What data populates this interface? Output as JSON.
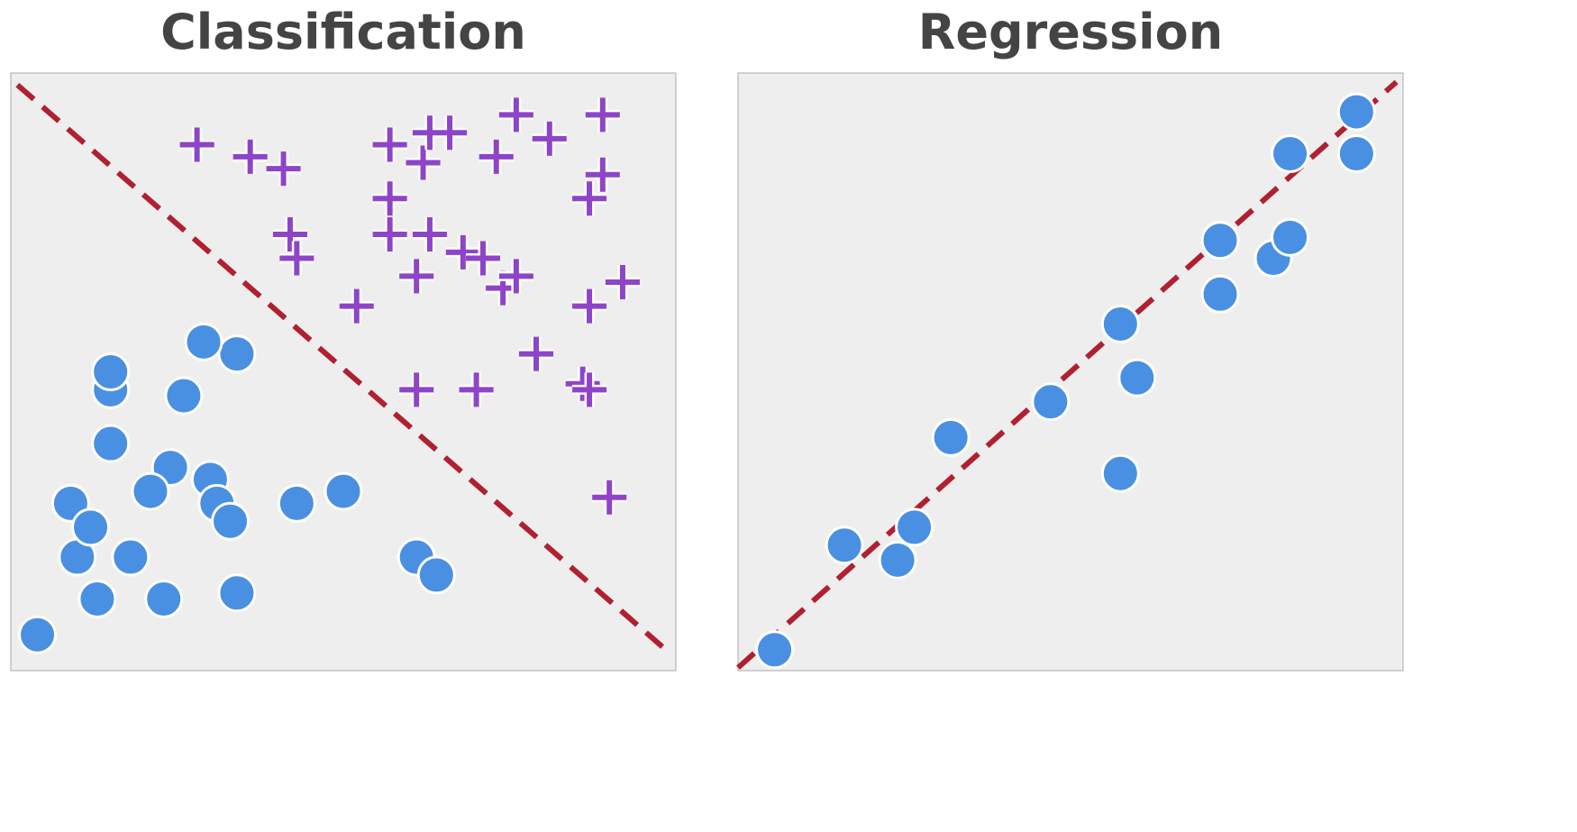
{
  "colors": {
    "circle": "#4a90e2",
    "plus": "#8e44c8",
    "line": "#b02030",
    "background": "#eeeeee",
    "frame": "#aaaaaa",
    "title": "#444444"
  },
  "chart_data": [
    {
      "type": "scatter",
      "title": "Classification",
      "xlim": [
        0,
        10
      ],
      "ylim": [
        0,
        10
      ],
      "grid": false,
      "boundary": {
        "style": "dashed",
        "x": [
          0.1,
          9.9
        ],
        "y": [
          9.8,
          0.3
        ]
      },
      "series": [
        {
          "marker": "circle",
          "x": [
            0.4,
            1.0,
            1.3,
            1.8,
            2.3,
            3.4,
            5.0,
            0.9,
            2.4,
            3.0,
            1.5,
            6.1,
            6.4,
            1.2,
            3.1,
            3.3,
            4.3,
            2.1,
            1.5,
            2.6,
            1.5,
            3.4,
            2.9
          ],
          "y": [
            0.6,
            1.9,
            1.2,
            1.9,
            1.2,
            1.3,
            3.0,
            2.8,
            3.4,
            3.2,
            3.8,
            1.9,
            1.6,
            2.4,
            2.8,
            2.5,
            2.8,
            3.0,
            4.7,
            4.6,
            5.0,
            5.3,
            5.5
          ]
        },
        {
          "marker": "plus",
          "x": [
            2.8,
            3.6,
            4.1,
            5.7,
            6.6,
            7.6,
            8.1,
            8.9,
            7.3,
            5.7,
            4.2,
            6.3,
            6.8,
            5.7,
            6.1,
            7.4,
            7.6,
            8.7,
            9.2,
            8.7,
            5.2,
            8.9,
            4.3,
            7.9,
            8.6,
            8.7,
            9.0,
            7.0,
            6.1,
            7.1,
            6.2,
            6.3
          ],
          "y": [
            8.8,
            8.6,
            8.4,
            8.8,
            9.0,
            9.3,
            8.9,
            9.3,
            8.6,
            7.9,
            7.3,
            7.3,
            7.0,
            7.3,
            6.6,
            6.4,
            6.6,
            7.9,
            6.5,
            6.1,
            6.1,
            8.3,
            6.9,
            5.3,
            4.8,
            4.7,
            2.9,
            4.7,
            4.7,
            6.9,
            8.5,
            9.0
          ]
        }
      ]
    },
    {
      "type": "scatter",
      "title": "Regression",
      "xlim": [
        0,
        10
      ],
      "ylim": [
        0,
        10
      ],
      "grid": false,
      "fit_line": {
        "style": "dashed",
        "x": [
          0.0,
          9.9
        ],
        "y": [
          0.05,
          9.85
        ]
      },
      "series": [
        {
          "marker": "circle",
          "x": [
            0.55,
            1.6,
            2.4,
            2.65,
            3.2,
            4.7,
            5.75,
            5.75,
            6.0,
            7.25,
            7.25,
            8.05,
            8.3,
            8.3,
            9.3,
            9.3
          ],
          "y": [
            0.35,
            2.1,
            1.85,
            2.4,
            3.9,
            4.5,
            5.8,
            3.3,
            4.9,
            6.3,
            7.2,
            6.9,
            7.25,
            8.65,
            8.65,
            9.35
          ]
        }
      ]
    }
  ]
}
